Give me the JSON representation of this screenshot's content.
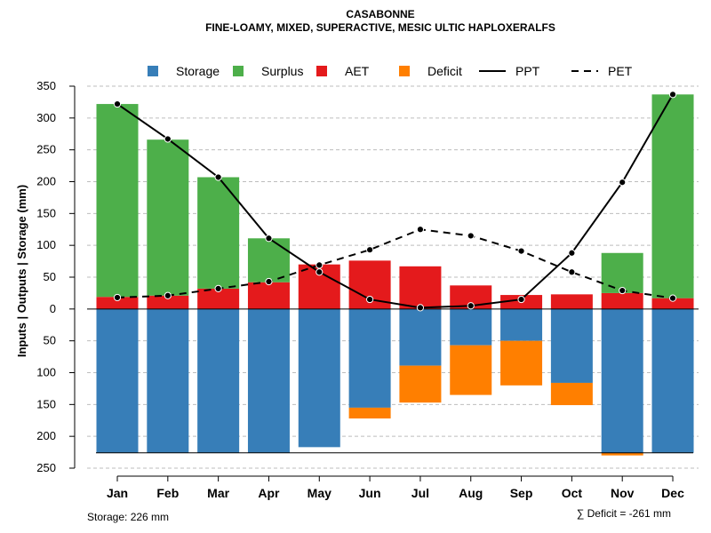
{
  "chart_data": {
    "type": "bar",
    "title": "CASABONNE",
    "subtitle": "FINE-LOAMY, MIXED, SUPERACTIVE, MESIC ULTIC HAPLOXERALFS",
    "ylabel": "Inputs | Outputs | Storage    (mm)",
    "ylim": [
      -250,
      350
    ],
    "yticks": [
      350,
      300,
      250,
      200,
      150,
      100,
      50,
      0,
      -50,
      -100,
      -150,
      -200,
      -250
    ],
    "ytick_labels": [
      "350",
      "300",
      "250",
      "200",
      "150",
      "100",
      "50",
      "0",
      "50",
      "100",
      "150",
      "200",
      "250"
    ],
    "categories": [
      "Jan",
      "Feb",
      "Mar",
      "Apr",
      "May",
      "Jun",
      "Jul",
      "Aug",
      "Sep",
      "Oct",
      "Nov",
      "Dec"
    ],
    "legend": [
      {
        "key": "storage",
        "label": "Storage",
        "kind": "square",
        "color": "#377EB8"
      },
      {
        "key": "surplus",
        "label": "Surplus",
        "kind": "square",
        "color": "#4DAF4A"
      },
      {
        "key": "aet",
        "label": "AET",
        "kind": "square",
        "color": "#E41A1C"
      },
      {
        "key": "deficit",
        "label": "Deficit",
        "kind": "square",
        "color": "#FF7F00"
      },
      {
        "key": "ppt",
        "label": "PPT",
        "kind": "solid-line",
        "color": "#000000"
      },
      {
        "key": "pet",
        "label": "PET",
        "kind": "dashed-line",
        "color": "#000000"
      }
    ],
    "series": [
      {
        "name": "AET",
        "values": [
          19,
          21,
          32,
          42,
          70,
          76,
          67,
          37,
          22,
          23,
          25,
          17
        ]
      },
      {
        "name": "Surplus",
        "values": [
          303,
          245,
          175,
          69,
          0,
          0,
          0,
          0,
          0,
          0,
          63,
          320
        ]
      },
      {
        "name": "Storage",
        "values": [
          226,
          226,
          226,
          226,
          217,
          155,
          89,
          57,
          50,
          116,
          226,
          226
        ]
      },
      {
        "name": "Deficit",
        "values": [
          0,
          0,
          0,
          0,
          0,
          17,
          58,
          78,
          70,
          35,
          4,
          0
        ]
      },
      {
        "name": "PPT",
        "values": [
          322,
          267,
          207,
          111,
          58,
          15,
          2,
          5,
          15,
          88,
          199,
          337
        ]
      },
      {
        "name": "PET",
        "values": [
          18,
          21,
          32,
          43,
          69,
          93,
          125,
          115,
          91,
          58,
          29,
          17
        ]
      }
    ],
    "storage_capacity": 226,
    "storage_label": "Storage: 226 mm",
    "deficit_label": "∑ Deficit = -261 mm"
  }
}
